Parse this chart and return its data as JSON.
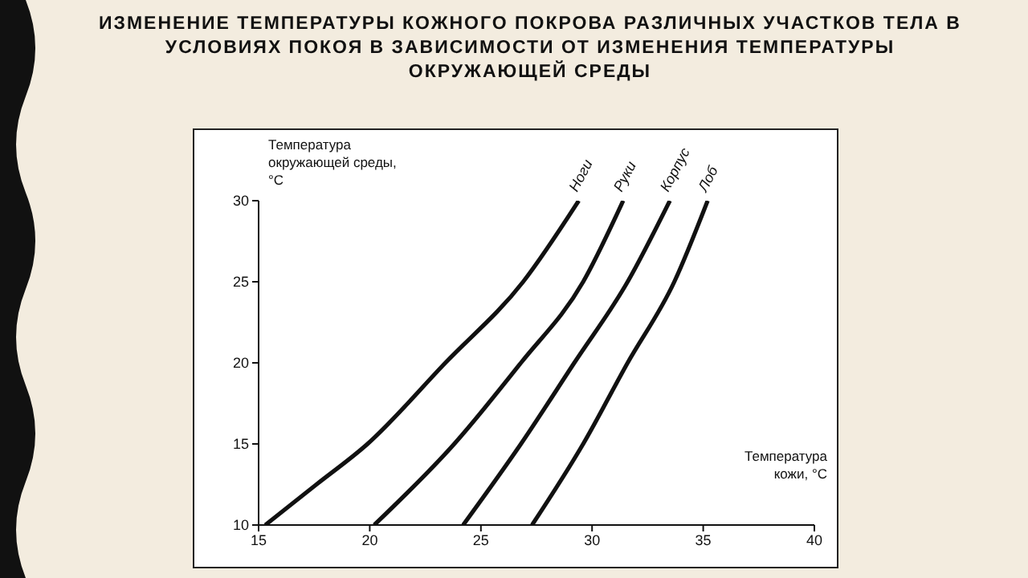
{
  "chart_data": {
    "type": "line",
    "title": "ИЗМЕНЕНИЕ ТЕМПЕРАТУРЫ КОЖНОГО ПОКРОВА РАЗЛИЧНЫХ УЧАСТКОВ ТЕЛА В УСЛОВИЯХ ПОКОЯ В ЗАВИСИМОСТИ ОТ ИЗМЕНЕНИЯ ТЕМПЕРАТУРЫ ОКРУЖАЮЩЕЙ СРЕДЫ",
    "xlabel": "Температура кожи, °C",
    "ylabel": "Температура окружающей среды, °C",
    "xlim": [
      15,
      40
    ],
    "xticks": [
      15,
      20,
      25,
      30,
      35,
      40
    ],
    "ylim": [
      10,
      30
    ],
    "yticks": [
      10,
      15,
      20,
      25,
      30
    ],
    "grid": false,
    "marker": "none",
    "line_style": "solid",
    "series": [
      {
        "name": "Ноги",
        "color": "#111111",
        "x": [
          15.3,
          17.6,
          19.9,
          23.4,
          26.9,
          29.4
        ],
        "values": [
          10,
          12.5,
          15,
          20,
          25,
          30
        ]
      },
      {
        "name": "Руки",
        "color": "#111111",
        "x": [
          20.2,
          23.8,
          26.8,
          29.6,
          31.4
        ],
        "values": [
          10,
          15,
          20,
          25,
          30
        ]
      },
      {
        "name": "Корпус",
        "color": "#111111",
        "x": [
          24.2,
          26.8,
          29.2,
          31.6,
          33.5
        ],
        "values": [
          10,
          15,
          20,
          25,
          30
        ]
      },
      {
        "name": "Лоб",
        "color": "#111111",
        "x": [
          27.3,
          29.6,
          31.6,
          33.7,
          35.2
        ],
        "values": [
          10,
          15,
          20,
          25,
          30
        ]
      }
    ]
  }
}
